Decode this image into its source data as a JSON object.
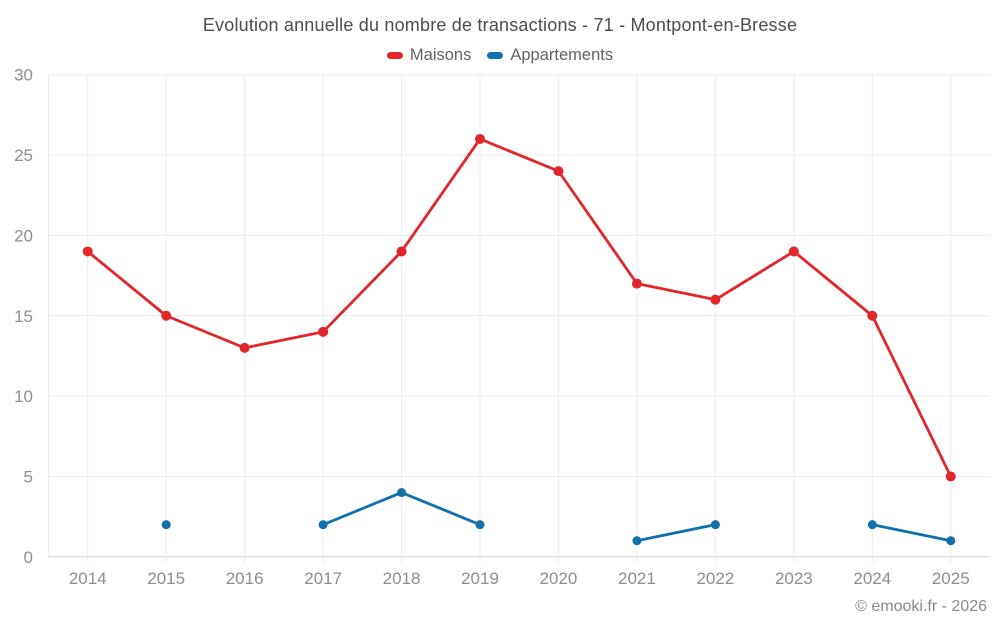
{
  "header": {
    "title": "Evolution annuelle du nombre de transactions - 71 - Montpont-en-Bresse"
  },
  "footer": {
    "credit": "© emooki.fr - 2026"
  },
  "palette": {
    "maisons_red": "#e2262b",
    "appartements_blue": "#1271ab",
    "grid_line": "#ececec",
    "axis_line": "#d4d4d4",
    "axis_text": "#8e8e8e",
    "title_text": "#4d4d4d",
    "legend_text": "#636363",
    "footer_text": "#8a8a8a",
    "background": "#ffffff"
  },
  "chart_data": {
    "type": "line",
    "title": "Evolution annuelle du nombre de transactions - 71 - Montpont-en-Bresse",
    "categories": [
      "2014",
      "2015",
      "2016",
      "2017",
      "2018",
      "2019",
      "2020",
      "2021",
      "2022",
      "2023",
      "2024",
      "2025"
    ],
    "series": [
      {
        "name": "Maisons",
        "color": "#e2262b",
        "values": [
          19,
          15,
          13,
          14,
          19,
          26,
          24,
          17,
          16,
          19,
          15,
          5
        ]
      },
      {
        "name": "Appartements",
        "color": "#1271ab",
        "values": [
          null,
          2,
          null,
          2,
          4,
          2,
          null,
          1,
          2,
          null,
          2,
          1
        ]
      }
    ],
    "xlabel": "",
    "ylabel": "",
    "ylim": [
      0,
      30
    ],
    "yticks": [
      0,
      5,
      10,
      15,
      20,
      25,
      30
    ],
    "grid": true,
    "legend_position": "top",
    "gaps_note": "null = no data point plotted for that year"
  }
}
